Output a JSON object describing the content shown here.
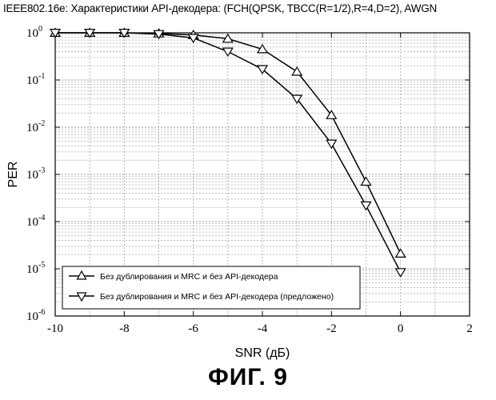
{
  "chart_data": {
    "type": "line",
    "title": "IEEE802.16e: Характеристики API-декодера: (FCH(QPSK, TBCC(R=1/2),R=4,D=2), AWGN",
    "xlabel": "SNR (дБ)",
    "ylabel": "PER",
    "xlim": [
      -10,
      2
    ],
    "ylim": [
      1e-06,
      1
    ],
    "yscale": "log",
    "grid": true,
    "legend_position": "bottom-left",
    "x_ticks": [
      "-10",
      "-8",
      "-6",
      "-4",
      "-2",
      "0",
      "2"
    ],
    "y_ticks": [
      {
        "base": "10",
        "exp": "0"
      },
      {
        "base": "10",
        "exp": "-1"
      },
      {
        "base": "10",
        "exp": "-2"
      },
      {
        "base": "10",
        "exp": "-3"
      },
      {
        "base": "10",
        "exp": "-4"
      },
      {
        "base": "10",
        "exp": "-5"
      },
      {
        "base": "10",
        "exp": "-6"
      }
    ],
    "x": [
      -10,
      -9,
      -8,
      -7,
      -6,
      -5,
      -4,
      -3,
      -2,
      -1,
      0
    ],
    "series": [
      {
        "name": "Без дублирования и MRC и без API-декодера",
        "marker": "triangle-up",
        "values": [
          1.0,
          1.0,
          1.0,
          0.97,
          0.9,
          0.75,
          0.45,
          0.15,
          0.018,
          0.0007,
          2.1e-05
        ]
      },
      {
        "name": "Без дублирования и MRC и без API-декодера (предложено)",
        "marker": "triangle-down",
        "values": [
          1.0,
          1.0,
          1.0,
          0.94,
          0.78,
          0.4,
          0.17,
          0.04,
          0.0045,
          0.00022,
          8.5e-06
        ]
      }
    ]
  },
  "caption": "ФИГ. 9"
}
